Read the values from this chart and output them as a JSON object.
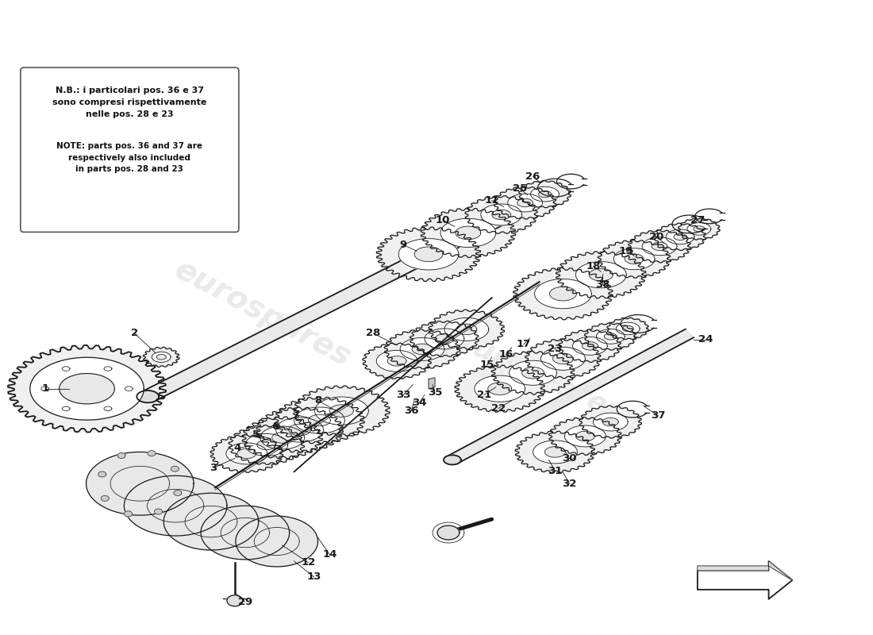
{
  "background_color": "#ffffff",
  "line_color": "#1a1a1a",
  "note_text_it": "N.B.: i particolari pos. 36 e 37\nsono compresi rispettivamente\nnelle pos. 28 e 23",
  "note_text_en": "NOTE: parts pos. 36 and 37 are\nrespectively also included\nin parts pos. 28 and 23",
  "fig_width": 11.0,
  "fig_height": 8.0,
  "lw_heavy": 1.3,
  "lw_med": 0.9,
  "lw_thin": 0.55
}
